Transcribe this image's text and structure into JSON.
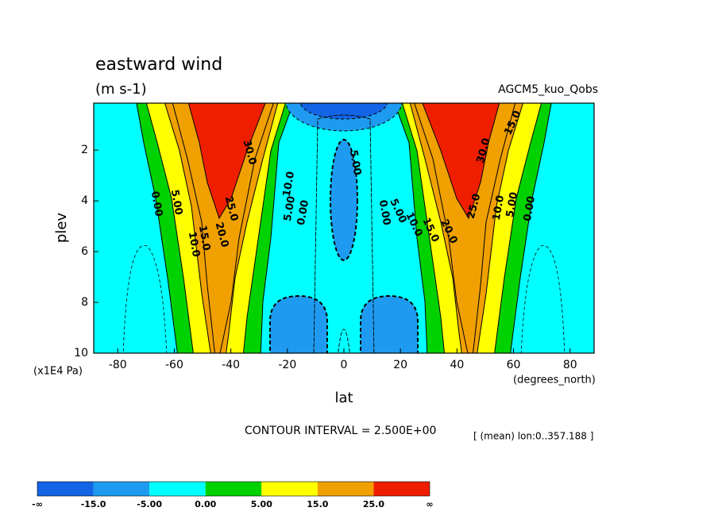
{
  "chart_data": {
    "type": "contour",
    "title": "eastward wind",
    "subtitle": "(m s-1)",
    "dataset": "AGCM5_kuo_Qobs",
    "x_label": "lat",
    "x_units": "(degrees_north)",
    "y_label": "plev",
    "y_units": "(x1E4 Pa)",
    "xlim": [
      -88.5,
      88.5
    ],
    "xticks": [
      -80,
      -60,
      -40,
      -20,
      0,
      20,
      40,
      60,
      80
    ],
    "ylim": [
      10,
      0.15
    ],
    "yticks": [
      2,
      4,
      6,
      8,
      10
    ],
    "contour_interval": "CONTOUR INTERVAL = 2.500E+00",
    "averaging": "[ (mean) lon:0..357.188 ]",
    "contour_labels": [
      "0.00",
      "5.00",
      "10.0",
      "15.0",
      "20.0",
      "25.0",
      "30.0",
      "10.0",
      "5.00",
      "0.00",
      "5.00",
      "0.00",
      "5.00",
      "10.0",
      "15.0",
      "20.0",
      "25.0",
      "30.0",
      "10.0",
      "5.00",
      "0.00",
      "15.0"
    ],
    "colorbar": {
      "labels": [
        "-∞",
        "-15.0",
        "-5.00",
        "0.00",
        "5.00",
        "15.0",
        "25.0",
        "∞"
      ],
      "colors": [
        "#1464e6",
        "#1e9bf0",
        "#00ffff",
        "#00d200",
        "#ffff00",
        "#f0a000",
        "#f01e00"
      ]
    }
  }
}
